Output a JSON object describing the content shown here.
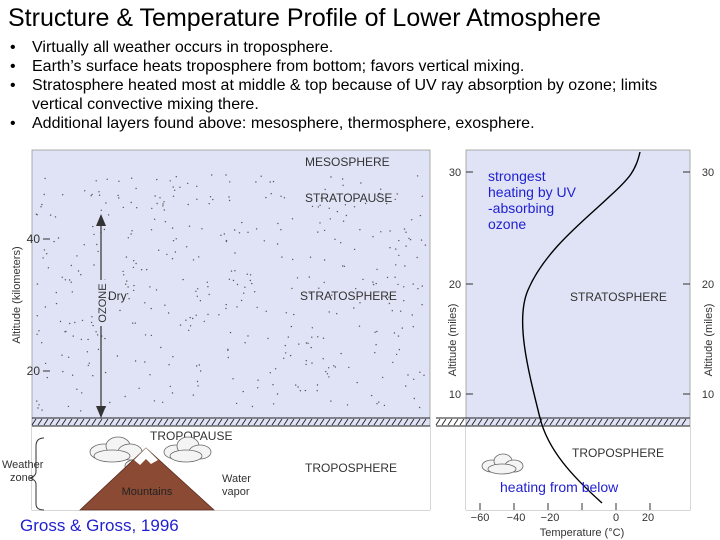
{
  "title": "Structure & Temperature Profile of Lower Atmosphere",
  "bullets": [
    "Virtually all weather occurs in troposphere.",
    "Earth’s surface heats troposphere from bottom; favors vertical mixing.",
    "Stratosphere heated most at middle & top because of UV ray absorption by ozone; limits vertical convective mixing there.",
    "Additional layers found above: mesosphere, thermosphere, exosphere."
  ],
  "left_panel": {
    "layers": {
      "mesosphere": "MESOSPHERE",
      "stratopause": "STRATOPAUSE",
      "stratosphere": "STRATOSPHERE",
      "tropopause": "TROPOPAUSE",
      "troposphere": "TROPOSPHERE"
    },
    "ozone": "OZONE",
    "dry": "Dry",
    "mountains": "Mountains",
    "water_vapor_1": "Water",
    "water_vapor_2": "vapor",
    "weather_zone_1": "Weather",
    "weather_zone_2": "zone",
    "axis_label": "Altitude (kilometers)",
    "ticks": [
      "40",
      "20"
    ]
  },
  "right_panel": {
    "stratosphere": "STRATOSPHERE",
    "troposphere": "TROPOSPHERE",
    "y_left_label": "Altitude (miles)",
    "y_right_label": "Altitude (miles)",
    "y_ticks_left": [
      "30",
      "20",
      "10"
    ],
    "y_ticks_right": [
      "30",
      "20",
      "10"
    ],
    "x_ticks": [
      "−60",
      "−40",
      "−20",
      "0",
      "20"
    ],
    "x_label": "Temperature (°C)",
    "annotation_top": [
      "strongest",
      "heating by UV",
      "-absorbing",
      "ozone"
    ],
    "annotation_bottom": "heating from below"
  },
  "credit": "Gross & Gross, 1996",
  "colors": {
    "panel": "#dfe3f5",
    "blue_text": "#1f1fd0",
    "mountain": "#8a4a34",
    "curve": "#000000"
  }
}
